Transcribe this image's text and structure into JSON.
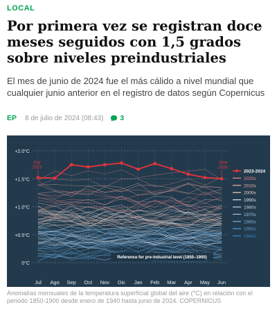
{
  "section": "LOCAL",
  "headline": "Por primera vez se registran doce meses seguidos con 1,5 grados sobre niveles preindustriales",
  "subtitle": "El mes de junio de 2024 fue el más cálido a nivel mundial que cualquier junio anterior en el registro de datos según Copernicus",
  "meta": {
    "agency": "EP",
    "date": "8 de julio de 2024 (08:43)",
    "comments": "3",
    "comment_icon": "speech-bubble-icon"
  },
  "caption": "Anomalías mensuales de la temperatura superficial global del aire (°C) en relación con el periodo 1850-1900 desde enero de 1940 hasta junio de 2024. COPERNICUS",
  "colors": {
    "accent": "#00a651",
    "chart_bg": "#223a4c",
    "highlight": "#e8333a"
  },
  "chart_data": {
    "type": "line",
    "categories": [
      "Jul",
      "Ago",
      "Sep",
      "Oct",
      "Nov",
      "Dic",
      "Jan",
      "Feb",
      "Mar",
      "Apr",
      "May",
      "Jun"
    ],
    "ylim": [
      0,
      2.0
    ],
    "yticks": [
      {
        "value": 0,
        "label": "0°C"
      },
      {
        "value": 0.5,
        "label": "+0.5°C"
      },
      {
        "value": 1.0,
        "label": "+1.0°C"
      },
      {
        "value": 1.5,
        "label": "+1.5°C"
      },
      {
        "value": 2.0,
        "label": "+2.0°C"
      }
    ],
    "grid": true,
    "legend_position": "right",
    "series": [
      {
        "name": "2023-2024",
        "values": [
          1.52,
          1.51,
          1.75,
          1.71,
          1.75,
          1.78,
          1.67,
          1.77,
          1.68,
          1.58,
          1.52,
          1.5
        ]
      }
    ],
    "legend": [
      {
        "label": "2023-2024",
        "color": "#e8333a"
      },
      {
        "label": "2020s",
        "color": "#f08a8a"
      },
      {
        "label": "2010s",
        "color": "#f3b2a6"
      },
      {
        "label": "2000s",
        "color": "#f2d2c8"
      },
      {
        "label": "1990s",
        "color": "#dfe7ee"
      },
      {
        "label": "1980s",
        "color": "#c2d6e6"
      },
      {
        "label": "1970s",
        "color": "#9fc3e0"
      },
      {
        "label": "1960s",
        "color": "#7cafd9"
      },
      {
        "label": "1950s",
        "color": "#5b9bd2"
      },
      {
        "label": "1940s",
        "color": "#3d86c6"
      }
    ],
    "annotations": {
      "start": "July 2023",
      "end": "June 2024",
      "reference": "Reference for pre-industrial level (1850–1900)"
    },
    "decade_bands": [
      {
        "decade": "2020s",
        "low": 0.9,
        "high": 1.75
      },
      {
        "decade": "2010s",
        "low": 0.75,
        "high": 1.35
      },
      {
        "decade": "2000s",
        "low": 0.6,
        "high": 1.1
      },
      {
        "decade": "1990s",
        "low": 0.45,
        "high": 0.95
      },
      {
        "decade": "1980s",
        "low": 0.3,
        "high": 0.8
      },
      {
        "decade": "1970s",
        "low": 0.15,
        "high": 0.65
      },
      {
        "decade": "1960s",
        "low": 0.1,
        "high": 0.6
      },
      {
        "decade": "1950s",
        "low": 0.05,
        "high": 0.55
      },
      {
        "decade": "1940s",
        "low": 0.1,
        "high": 0.6
      }
    ]
  }
}
